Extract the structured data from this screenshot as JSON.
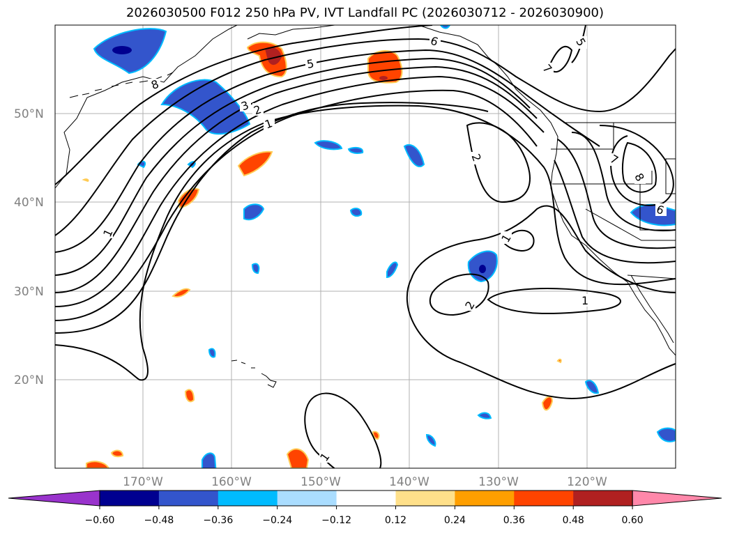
{
  "title": "2026030500 F012 250 hPa PV, IVT Landfall PC (2026030712 - 2026030900)",
  "lat_labels": [
    "50°N",
    "40°N",
    "30°N",
    "20°N"
  ],
  "lon_labels": [
    "170°W",
    "160°W",
    "150°W",
    "140°W",
    "130°W",
    "120°W"
  ],
  "contour_labels": [
    "8",
    "5",
    "3",
    "2",
    "1",
    "1",
    "6",
    "5",
    "7",
    "2",
    "1",
    "2",
    "1",
    "7",
    "8",
    "6",
    "1"
  ],
  "colorbar": {
    "ticks": [
      "−0.60",
      "−0.48",
      "−0.36",
      "−0.24",
      "−0.12",
      "0.12",
      "0.24",
      "0.36",
      "0.48",
      "0.60"
    ],
    "colors": [
      "#9933cc",
      "#000090",
      "#3355cc",
      "#00bbff",
      "#aaddff",
      "#ffffff",
      "#ffe08a",
      "#ff9f00",
      "#ff4400",
      "#b02020",
      "#ff88aa"
    ]
  }
}
